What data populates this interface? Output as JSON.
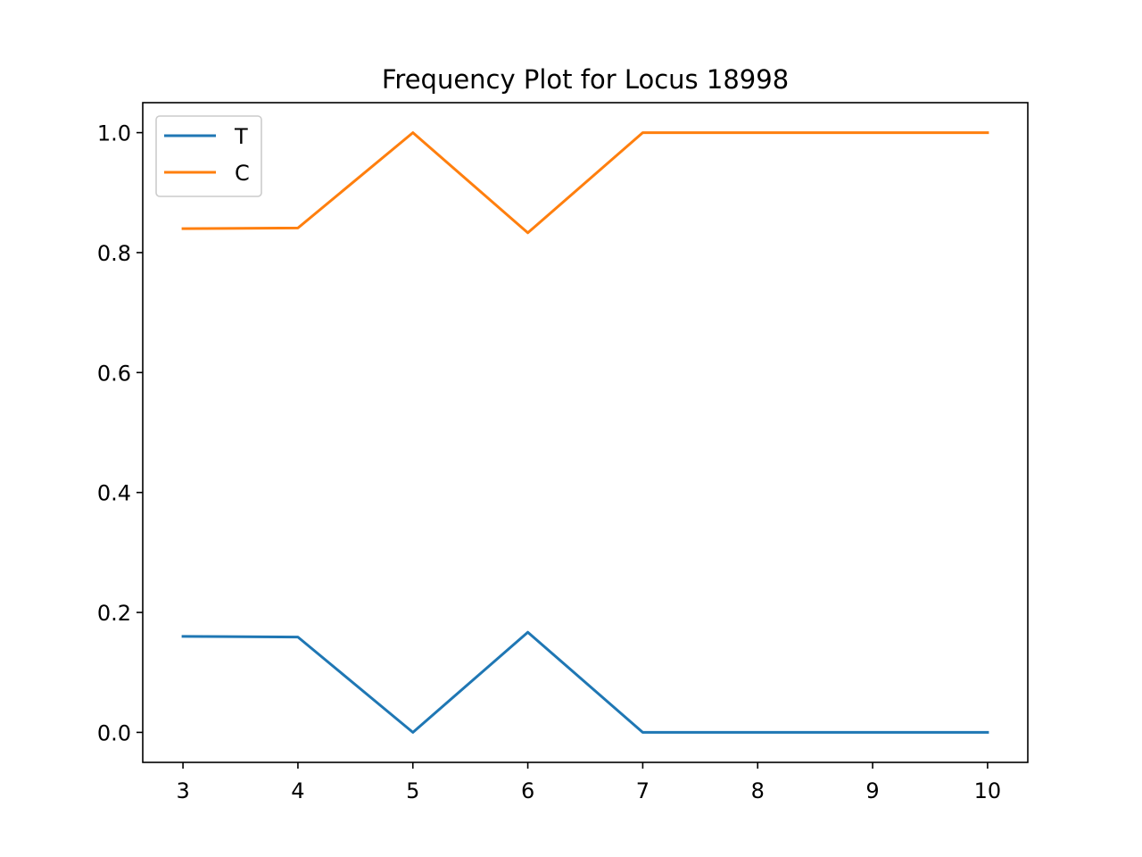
{
  "chart_data": {
    "type": "line",
    "title": "Frequency Plot for Locus 18998",
    "xlabel": "",
    "ylabel": "",
    "x": [
      3,
      4,
      5,
      6,
      7,
      8,
      9,
      10
    ],
    "xticks": [
      "3",
      "4",
      "5",
      "6",
      "7",
      "8",
      "9",
      "10"
    ],
    "yticks": [
      "0.0",
      "0.2",
      "0.4",
      "0.6",
      "0.8",
      "1.0"
    ],
    "xlim": [
      2.65,
      10.35
    ],
    "ylim": [
      -0.05,
      1.05
    ],
    "grid": false,
    "legend_position": "upper-left",
    "series": [
      {
        "name": "T",
        "color": "#1f77b4",
        "values": [
          0.16,
          0.159,
          0.0,
          0.167,
          0.0,
          0.0,
          0.0,
          0.0
        ]
      },
      {
        "name": "C",
        "color": "#ff7f0e",
        "values": [
          0.84,
          0.841,
          1.0,
          0.833,
          1.0,
          1.0,
          1.0,
          1.0
        ]
      }
    ]
  }
}
